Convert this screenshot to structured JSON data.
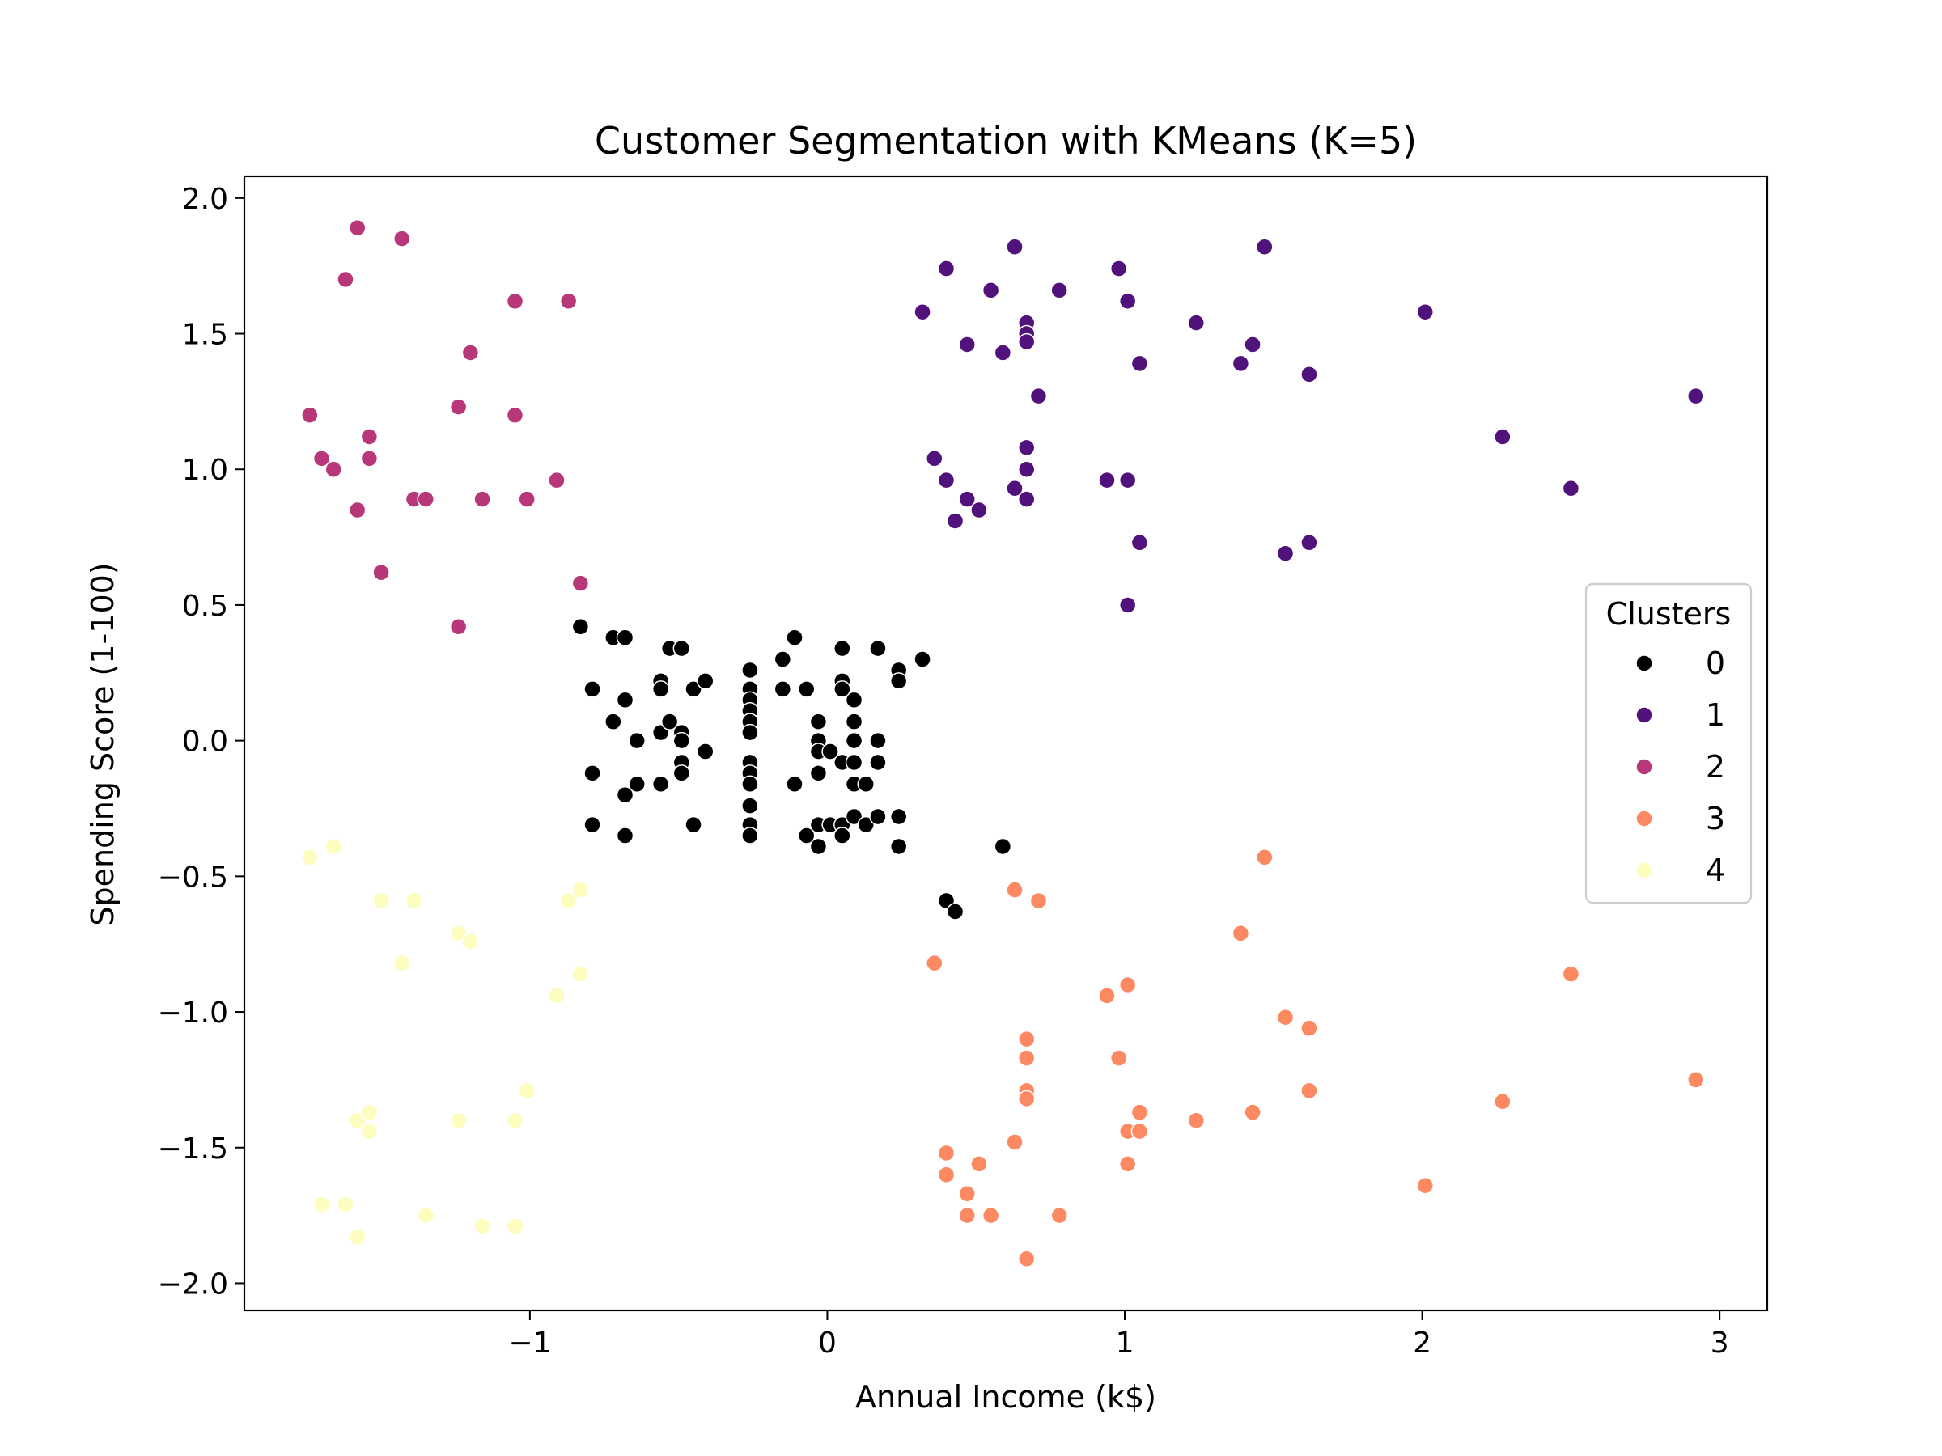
{
  "chart_data": {
    "type": "scatter",
    "title": "Customer Segmentation with KMeans (K=5)",
    "xlabel": "Annual Income (k$)",
    "ylabel": "Spending Score (1-100)",
    "xlim": [
      -1.96,
      3.16
    ],
    "ylim": [
      -2.1,
      2.08
    ],
    "xticks": [
      -1,
      0,
      1,
      2,
      3
    ],
    "xtick_labels": [
      "−1",
      "0",
      "1",
      "2",
      "3"
    ],
    "yticks": [
      2.0,
      1.5,
      1.0,
      0.5,
      0.0,
      -0.5,
      -1.0,
      -1.5,
      -2.0
    ],
    "ytick_labels": [
      "2.0",
      "1.5",
      "1.0",
      "0.5",
      "0.0",
      "−0.5",
      "−1.0",
      "−1.5",
      "−2.0"
    ],
    "grid": false,
    "legend": {
      "title": "Clusters",
      "placement": "right"
    },
    "series": [
      {
        "name": "0",
        "color": "#000000",
        "points": [
          [
            -0.83,
            0.42
          ],
          [
            -0.79,
            0.19
          ],
          [
            -0.79,
            -0.12
          ],
          [
            -0.79,
            -0.31
          ],
          [
            -0.72,
            0.38
          ],
          [
            -0.72,
            0.07
          ],
          [
            -0.68,
            0.38
          ],
          [
            -0.68,
            0.15
          ],
          [
            -0.68,
            -0.2
          ],
          [
            -0.68,
            -0.35
          ],
          [
            -0.64,
            -0.0
          ],
          [
            -0.64,
            -0.16
          ],
          [
            -0.56,
            0.22
          ],
          [
            -0.56,
            0.19
          ],
          [
            -0.56,
            0.03
          ],
          [
            -0.56,
            -0.16
          ],
          [
            -0.53,
            0.34
          ],
          [
            -0.53,
            0.07
          ],
          [
            -0.49,
            0.34
          ],
          [
            -0.49,
            0.03
          ],
          [
            -0.49,
            -0.0
          ],
          [
            -0.49,
            -0.08
          ],
          [
            -0.49,
            -0.12
          ],
          [
            -0.45,
            0.19
          ],
          [
            -0.45,
            -0.31
          ],
          [
            -0.41,
            0.22
          ],
          [
            -0.41,
            -0.04
          ],
          [
            -0.26,
            0.26
          ],
          [
            -0.26,
            0.19
          ],
          [
            -0.26,
            0.15
          ],
          [
            -0.26,
            0.11
          ],
          [
            -0.26,
            0.07
          ],
          [
            -0.26,
            0.03
          ],
          [
            -0.26,
            -0.08
          ],
          [
            -0.26,
            -0.12
          ],
          [
            -0.26,
            -0.16
          ],
          [
            -0.26,
            -0.24
          ],
          [
            -0.26,
            -0.31
          ],
          [
            -0.26,
            -0.35
          ],
          [
            -0.15,
            0.3
          ],
          [
            -0.15,
            0.19
          ],
          [
            -0.11,
            0.38
          ],
          [
            -0.11,
            -0.16
          ],
          [
            -0.07,
            0.19
          ],
          [
            -0.07,
            -0.35
          ],
          [
            -0.03,
            0.07
          ],
          [
            -0.03,
            -0.0
          ],
          [
            -0.03,
            -0.04
          ],
          [
            -0.03,
            -0.12
          ],
          [
            -0.03,
            -0.31
          ],
          [
            -0.03,
            -0.39
          ],
          [
            0.01,
            -0.04
          ],
          [
            0.01,
            -0.31
          ],
          [
            0.05,
            0.34
          ],
          [
            0.05,
            0.22
          ],
          [
            0.05,
            0.19
          ],
          [
            0.05,
            -0.08
          ],
          [
            0.05,
            -0.31
          ],
          [
            0.05,
            -0.35
          ],
          [
            0.09,
            0.15
          ],
          [
            0.09,
            0.07
          ],
          [
            0.09,
            -0.0
          ],
          [
            0.09,
            -0.08
          ],
          [
            0.09,
            -0.16
          ],
          [
            0.09,
            -0.28
          ],
          [
            0.13,
            -0.16
          ],
          [
            0.13,
            -0.31
          ],
          [
            0.17,
            0.34
          ],
          [
            0.17,
            -0.0
          ],
          [
            0.17,
            -0.08
          ],
          [
            0.17,
            -0.28
          ],
          [
            0.24,
            0.26
          ],
          [
            0.24,
            0.22
          ],
          [
            0.24,
            -0.28
          ],
          [
            0.24,
            -0.39
          ],
          [
            0.32,
            0.3
          ],
          [
            0.59,
            -0.39
          ],
          [
            0.4,
            -0.59
          ],
          [
            0.43,
            -0.63
          ]
        ]
      },
      {
        "name": "1",
        "color": "#51127c",
        "points": [
          [
            0.32,
            1.58
          ],
          [
            0.36,
            1.04
          ],
          [
            0.4,
            1.74
          ],
          [
            0.4,
            0.96
          ],
          [
            0.43,
            0.81
          ],
          [
            0.47,
            1.46
          ],
          [
            0.47,
            0.89
          ],
          [
            0.51,
            0.85
          ],
          [
            0.55,
            1.66
          ],
          [
            0.59,
            1.43
          ],
          [
            0.63,
            1.82
          ],
          [
            0.63,
            0.93
          ],
          [
            0.67,
            1.54
          ],
          [
            0.67,
            1.5
          ],
          [
            0.67,
            1.47
          ],
          [
            0.67,
            1.08
          ],
          [
            0.67,
            1.0
          ],
          [
            0.67,
            0.89
          ],
          [
            0.71,
            1.27
          ],
          [
            0.78,
            1.66
          ],
          [
            0.94,
            0.96
          ],
          [
            0.98,
            1.74
          ],
          [
            1.01,
            1.62
          ],
          [
            1.01,
            0.96
          ],
          [
            1.01,
            0.5
          ],
          [
            1.05,
            1.39
          ],
          [
            1.05,
            0.73
          ],
          [
            1.24,
            1.54
          ],
          [
            1.39,
            1.39
          ],
          [
            1.43,
            1.46
          ],
          [
            1.47,
            1.82
          ],
          [
            1.54,
            0.69
          ],
          [
            1.62,
            1.35
          ],
          [
            1.62,
            0.73
          ],
          [
            2.01,
            1.58
          ],
          [
            2.27,
            1.12
          ],
          [
            2.5,
            0.93
          ],
          [
            2.92,
            1.27
          ]
        ]
      },
      {
        "name": "2",
        "color": "#b73779",
        "points": [
          [
            -1.74,
            1.2
          ],
          [
            -1.7,
            1.04
          ],
          [
            -1.66,
            1.0
          ],
          [
            -1.62,
            1.7
          ],
          [
            -1.58,
            1.89
          ],
          [
            -1.58,
            0.85
          ],
          [
            -1.54,
            1.12
          ],
          [
            -1.54,
            1.04
          ],
          [
            -1.5,
            0.62
          ],
          [
            -1.43,
            1.85
          ],
          [
            -1.39,
            0.89
          ],
          [
            -1.35,
            0.89
          ],
          [
            -1.24,
            1.23
          ],
          [
            -1.24,
            0.42
          ],
          [
            -1.2,
            1.43
          ],
          [
            -1.16,
            0.89
          ],
          [
            -1.05,
            1.62
          ],
          [
            -1.05,
            1.2
          ],
          [
            -1.01,
            0.89
          ],
          [
            -0.91,
            0.96
          ],
          [
            -0.87,
            1.62
          ],
          [
            -0.83,
            0.58
          ]
        ]
      },
      {
        "name": "3",
        "color": "#fc8961",
        "points": [
          [
            0.36,
            -0.82
          ],
          [
            0.4,
            -1.52
          ],
          [
            0.4,
            -1.6
          ],
          [
            0.47,
            -1.67
          ],
          [
            0.47,
            -1.75
          ],
          [
            0.51,
            -1.56
          ],
          [
            0.55,
            -1.75
          ],
          [
            0.63,
            -0.55
          ],
          [
            0.63,
            -1.48
          ],
          [
            0.67,
            -1.1
          ],
          [
            0.67,
            -1.17
          ],
          [
            0.67,
            -1.29
          ],
          [
            0.67,
            -1.32
          ],
          [
            0.67,
            -1.91
          ],
          [
            0.71,
            -0.59
          ],
          [
            0.78,
            -1.75
          ],
          [
            0.94,
            -0.94
          ],
          [
            0.98,
            -1.17
          ],
          [
            1.01,
            -0.9
          ],
          [
            1.01,
            -1.44
          ],
          [
            1.01,
            -1.56
          ],
          [
            1.05,
            -1.37
          ],
          [
            1.05,
            -1.44
          ],
          [
            1.24,
            -1.4
          ],
          [
            1.39,
            -0.71
          ],
          [
            1.43,
            -1.37
          ],
          [
            1.47,
            -0.43
          ],
          [
            1.54,
            -1.02
          ],
          [
            1.62,
            -1.06
          ],
          [
            1.62,
            -1.29
          ],
          [
            2.01,
            -1.64
          ],
          [
            2.27,
            -1.33
          ],
          [
            2.5,
            -0.86
          ],
          [
            2.92,
            -1.25
          ]
        ]
      },
      {
        "name": "4",
        "color": "#fcfdbf",
        "points": [
          [
            -1.74,
            -0.43
          ],
          [
            -1.7,
            -1.71
          ],
          [
            -1.66,
            -0.39
          ],
          [
            -1.62,
            -1.71
          ],
          [
            -1.58,
            -1.4
          ],
          [
            -1.58,
            -1.83
          ],
          [
            -1.54,
            -1.37
          ],
          [
            -1.54,
            -1.44
          ],
          [
            -1.5,
            -0.59
          ],
          [
            -1.43,
            -0.82
          ],
          [
            -1.39,
            -0.59
          ],
          [
            -1.35,
            -1.75
          ],
          [
            -1.24,
            -0.71
          ],
          [
            -1.24,
            -1.4
          ],
          [
            -1.2,
            -0.74
          ],
          [
            -1.16,
            -1.79
          ],
          [
            -1.05,
            -1.4
          ],
          [
            -1.05,
            -1.79
          ],
          [
            -1.01,
            -1.29
          ],
          [
            -0.91,
            -0.94
          ],
          [
            -0.87,
            -0.59
          ],
          [
            -0.83,
            -0.55
          ],
          [
            -0.83,
            -0.86
          ]
        ]
      }
    ]
  }
}
